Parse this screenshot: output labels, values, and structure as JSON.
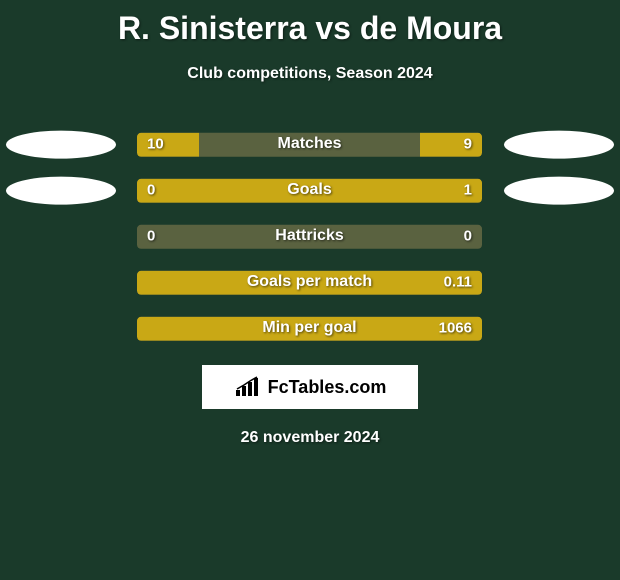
{
  "title": "R. Sinisterra vs de Moura",
  "subtitle": "Club competitions, Season 2024",
  "date": "26 november 2024",
  "colors": {
    "background": "#1a3a2a",
    "bar_bg": "#5a6240",
    "left_fill": "#c9a815",
    "right_fill": "#c9a815",
    "ellipse": "#ffffff",
    "text": "#ffffff",
    "logo_bg": "#ffffff"
  },
  "logo_text": "FcTables.com",
  "rows": [
    {
      "label": "Matches",
      "left": "10",
      "right": "9",
      "left_pct": 18,
      "right_pct": 18,
      "show_ellipse": true
    },
    {
      "label": "Goals",
      "left": "0",
      "right": "1",
      "left_pct": 18,
      "right_pct": 82,
      "show_ellipse": true
    },
    {
      "label": "Hattricks",
      "left": "0",
      "right": "0",
      "left_pct": 0,
      "right_pct": 0,
      "show_ellipse": false
    },
    {
      "label": "Goals per match",
      "left": "",
      "right": "0.11",
      "left_pct": 3,
      "right_pct": 97,
      "show_ellipse": false
    },
    {
      "label": "Min per goal",
      "left": "",
      "right": "1066",
      "left_pct": 3,
      "right_pct": 97,
      "show_ellipse": false
    }
  ]
}
